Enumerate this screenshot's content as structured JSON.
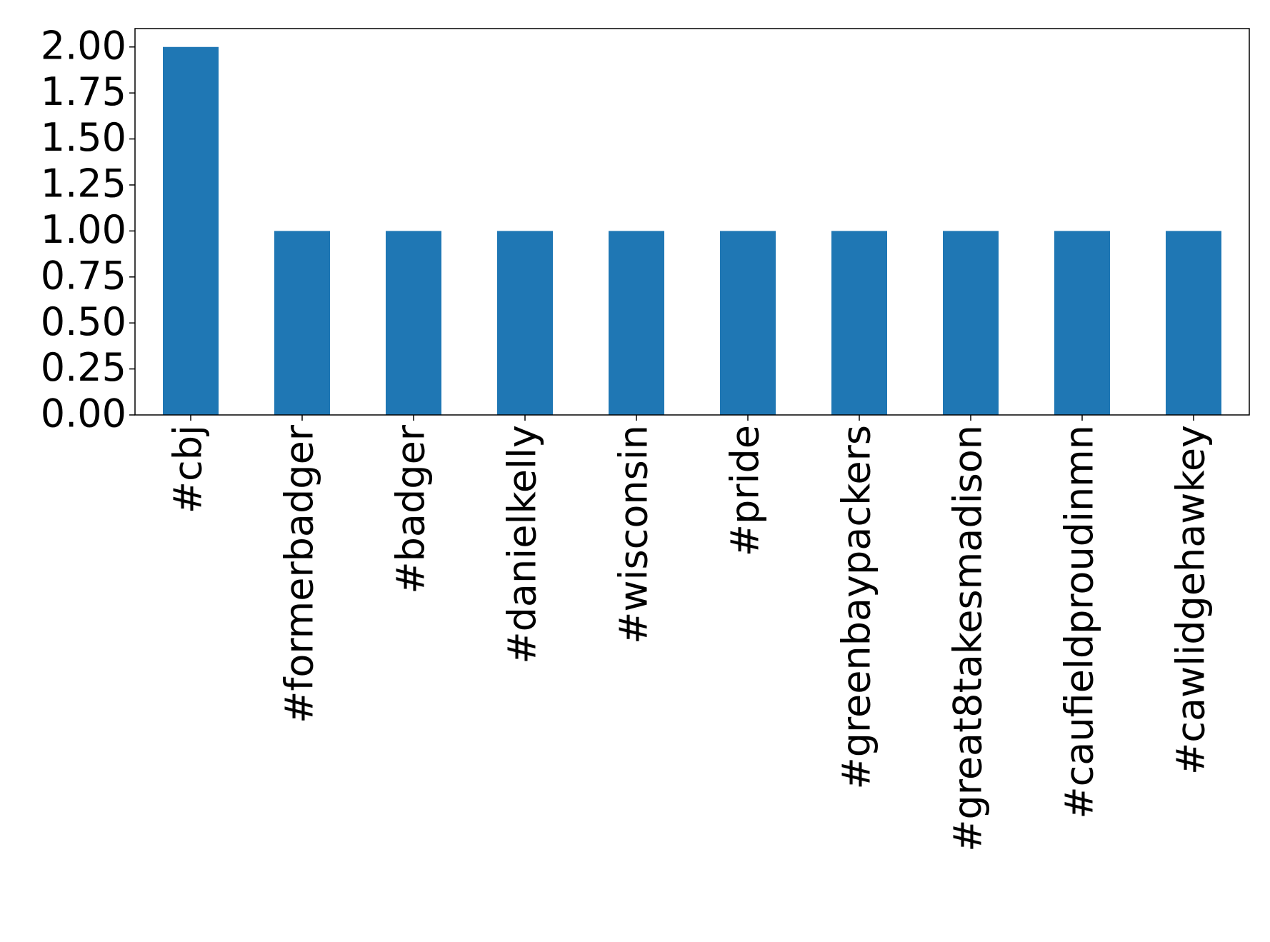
{
  "chart_data": {
    "type": "bar",
    "categories": [
      "#cbj",
      "#formerbadger",
      "#badger",
      "#danielkelly",
      "#wisconsin",
      "#pride",
      "#greenbaypackers",
      "#great8takesmadison",
      "#caufieldproudinmn",
      "#cawlidgehawkey"
    ],
    "values": [
      2,
      1,
      1,
      1,
      1,
      1,
      1,
      1,
      1,
      1
    ],
    "color": "#1f77b4",
    "ylim": [
      0,
      2.1
    ],
    "yticks": [
      {
        "value": 0,
        "label": "0.00"
      },
      {
        "value": 0.25,
        "label": "0.25"
      },
      {
        "value": 0.5,
        "label": "0.50"
      },
      {
        "value": 0.75,
        "label": "0.75"
      },
      {
        "value": 1,
        "label": "1.00"
      },
      {
        "value": 1.25,
        "label": "1.25"
      },
      {
        "value": 1.5,
        "label": "1.50"
      },
      {
        "value": 1.75,
        "label": "1.75"
      },
      {
        "value": 2,
        "label": "2.00"
      }
    ],
    "grid": false
  }
}
